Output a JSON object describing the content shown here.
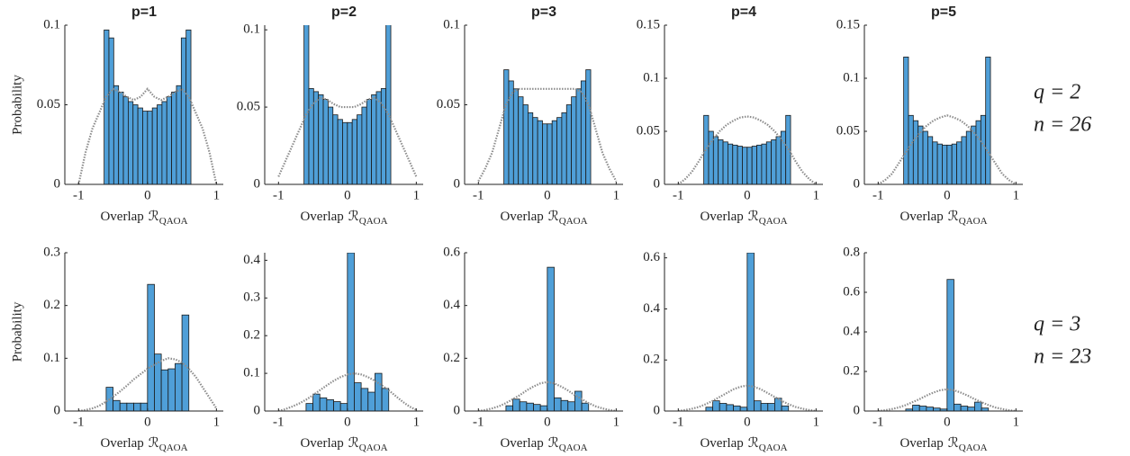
{
  "chart_data": [
    {
      "type": "histogram",
      "title": "p=1",
      "ylabel": "Probability",
      "xlabel": "Overlap",
      "xlabel_symbol": "ℛ",
      "xlabel_sub": "QAOA",
      "color": "#4f9fd8",
      "bins": [
        -0.63,
        -0.56,
        -0.49,
        -0.42,
        -0.35,
        -0.28,
        -0.21,
        -0.14,
        -0.07,
        0,
        0.07,
        0.14,
        0.21,
        0.28,
        0.35,
        0.42,
        0.49,
        0.56,
        0.63
      ],
      "values": [
        0.097,
        0.092,
        0.062,
        0.058,
        0.055,
        0.052,
        0.05,
        0.048,
        0.046,
        0.046,
        0.048,
        0.05,
        0.052,
        0.055,
        0.058,
        0.062,
        0.092,
        0.097
      ],
      "line": {
        "color": "#8c8c8c",
        "x": [
          -1,
          -0.9,
          -0.8,
          -0.7,
          -0.6,
          -0.5,
          -0.4,
          -0.3,
          -0.2,
          -0.1,
          0,
          0.1,
          0.2,
          0.3,
          0.4,
          0.5,
          0.6,
          0.7,
          0.8,
          0.9,
          1
        ],
        "values": [
          0,
          0.02,
          0.035,
          0.045,
          0.055,
          0.06,
          0.058,
          0.055,
          0.053,
          0.055,
          0.06,
          0.055,
          0.053,
          0.055,
          0.058,
          0.06,
          0.055,
          0.045,
          0.035,
          0.02,
          0
        ]
      },
      "xlim": [
        -1.2,
        1.1
      ],
      "xticks": [
        -1,
        0,
        1
      ],
      "ylim": [
        0,
        0.1
      ],
      "yticks": [
        0,
        0.05,
        0.1
      ]
    },
    {
      "type": "histogram",
      "title": "p=2",
      "xlabel": "Overlap",
      "xlabel_symbol": "ℛ",
      "xlabel_sub": "QAOA",
      "color": "#4f9fd8",
      "bins": [
        -0.63,
        -0.56,
        -0.49,
        -0.42,
        -0.35,
        -0.28,
        -0.21,
        -0.14,
        -0.07,
        0,
        0.07,
        0.14,
        0.21,
        0.28,
        0.35,
        0.42,
        0.49,
        0.56,
        0.63
      ],
      "values": [
        0.11,
        0.062,
        0.06,
        0.058,
        0.055,
        0.05,
        0.045,
        0.042,
        0.04,
        0.04,
        0.042,
        0.045,
        0.05,
        0.055,
        0.058,
        0.06,
        0.062,
        0.11
      ],
      "line": {
        "color": "#8c8c8c",
        "x": [
          -1,
          -0.9,
          -0.8,
          -0.7,
          -0.6,
          -0.5,
          -0.4,
          -0.3,
          -0.2,
          -0.1,
          0,
          0.1,
          0.2,
          0.3,
          0.4,
          0.5,
          0.6,
          0.7,
          0.8,
          0.9,
          1
        ],
        "values": [
          0.005,
          0.015,
          0.025,
          0.035,
          0.045,
          0.052,
          0.056,
          0.055,
          0.052,
          0.05,
          0.05,
          0.05,
          0.052,
          0.055,
          0.056,
          0.052,
          0.045,
          0.035,
          0.025,
          0.015,
          0.005
        ]
      },
      "xlim": [
        -1.2,
        1.1
      ],
      "xticks": [
        -1,
        0,
        1
      ],
      "ylim": [
        0,
        0.103
      ],
      "yticks": [
        0,
        0.05,
        0.1
      ]
    },
    {
      "type": "histogram",
      "title": "p=3",
      "xlabel": "Overlap",
      "xlabel_symbol": "ℛ",
      "xlabel_sub": "QAOA",
      "color": "#4f9fd8",
      "bins": [
        -0.63,
        -0.56,
        -0.49,
        -0.42,
        -0.35,
        -0.28,
        -0.21,
        -0.14,
        -0.07,
        0,
        0.07,
        0.14,
        0.21,
        0.28,
        0.35,
        0.42,
        0.49,
        0.56,
        0.63
      ],
      "values": [
        0.072,
        0.065,
        0.06,
        0.055,
        0.05,
        0.045,
        0.042,
        0.04,
        0.038,
        0.038,
        0.04,
        0.042,
        0.045,
        0.05,
        0.055,
        0.06,
        0.065,
        0.072
      ],
      "line": {
        "color": "#8c8c8c",
        "x": [
          -1,
          -0.9,
          -0.8,
          -0.7,
          -0.6,
          -0.5,
          -0.4,
          -0.3,
          -0.2,
          -0.1,
          0,
          0.1,
          0.2,
          0.3,
          0.4,
          0.5,
          0.6,
          0.7,
          0.8,
          0.9,
          1
        ],
        "values": [
          0.002,
          0.01,
          0.02,
          0.035,
          0.05,
          0.058,
          0.06,
          0.06,
          0.06,
          0.06,
          0.06,
          0.06,
          0.06,
          0.06,
          0.06,
          0.058,
          0.05,
          0.035,
          0.02,
          0.01,
          0.002
        ]
      },
      "xlim": [
        -1.2,
        1.1
      ],
      "xticks": [
        -1,
        0,
        1
      ],
      "ylim": [
        0,
        0.1
      ],
      "yticks": [
        0,
        0.05,
        0.1
      ]
    },
    {
      "type": "histogram",
      "title": "p=4",
      "xlabel": "Overlap",
      "xlabel_symbol": "ℛ",
      "xlabel_sub": "QAOA",
      "color": "#4f9fd8",
      "bins": [
        -0.63,
        -0.56,
        -0.49,
        -0.42,
        -0.35,
        -0.28,
        -0.21,
        -0.14,
        -0.07,
        0,
        0.07,
        0.14,
        0.21,
        0.28,
        0.35,
        0.42,
        0.49,
        0.56,
        0.63
      ],
      "values": [
        0.065,
        0.05,
        0.045,
        0.042,
        0.04,
        0.038,
        0.037,
        0.036,
        0.035,
        0.035,
        0.036,
        0.037,
        0.038,
        0.04,
        0.042,
        0.045,
        0.05,
        0.065
      ],
      "line": {
        "color": "#8c8c8c",
        "x": [
          -1,
          -0.9,
          -0.8,
          -0.7,
          -0.6,
          -0.5,
          -0.4,
          -0.3,
          -0.2,
          -0.1,
          0,
          0.1,
          0.2,
          0.3,
          0.4,
          0.5,
          0.6,
          0.7,
          0.8,
          0.9,
          1
        ],
        "values": [
          0,
          0.005,
          0.012,
          0.022,
          0.033,
          0.042,
          0.05,
          0.056,
          0.06,
          0.063,
          0.064,
          0.063,
          0.06,
          0.056,
          0.05,
          0.042,
          0.033,
          0.022,
          0.012,
          0.005,
          0
        ]
      },
      "xlim": [
        -1.2,
        1.1
      ],
      "xticks": [
        -1,
        0,
        1
      ],
      "ylim": [
        0,
        0.15
      ],
      "yticks": [
        0,
        0.05,
        0.1,
        0.15
      ]
    },
    {
      "type": "histogram",
      "title": "p=5",
      "xlabel": "Overlap",
      "xlabel_symbol": "ℛ",
      "xlabel_sub": "QAOA",
      "color": "#4f9fd8",
      "bins": [
        -0.63,
        -0.56,
        -0.49,
        -0.42,
        -0.35,
        -0.28,
        -0.21,
        -0.14,
        -0.07,
        0,
        0.07,
        0.14,
        0.21,
        0.28,
        0.35,
        0.42,
        0.49,
        0.56,
        0.63
      ],
      "values": [
        0.12,
        0.065,
        0.06,
        0.055,
        0.05,
        0.045,
        0.04,
        0.038,
        0.037,
        0.037,
        0.038,
        0.04,
        0.045,
        0.05,
        0.055,
        0.06,
        0.065,
        0.12
      ],
      "line": {
        "color": "#8c8c8c",
        "x": [
          -1,
          -0.9,
          -0.8,
          -0.7,
          -0.6,
          -0.5,
          -0.4,
          -0.3,
          -0.2,
          -0.1,
          0,
          0.1,
          0.2,
          0.3,
          0.4,
          0.5,
          0.6,
          0.7,
          0.8,
          0.9,
          1
        ],
        "values": [
          0,
          0.004,
          0.01,
          0.02,
          0.03,
          0.04,
          0.048,
          0.055,
          0.06,
          0.063,
          0.065,
          0.063,
          0.06,
          0.055,
          0.048,
          0.04,
          0.03,
          0.02,
          0.01,
          0.004,
          0
        ]
      },
      "xlim": [
        -1.2,
        1.1
      ],
      "xticks": [
        -1,
        0,
        1
      ],
      "ylim": [
        0,
        0.15
      ],
      "yticks": [
        0,
        0.05,
        0.1,
        0.15
      ]
    },
    {
      "type": "histogram",
      "ylabel": "Probability",
      "xlabel": "Overlap",
      "xlabel_symbol": "ℛ",
      "xlabel_sub": "QAOA",
      "color": "#4f9fd8",
      "bins": [
        -0.6,
        -0.5,
        -0.4,
        -0.3,
        -0.2,
        -0.1,
        0,
        0.1,
        0.2,
        0.3,
        0.4,
        0.5,
        0.6
      ],
      "values": [
        0.045,
        0.02,
        0.015,
        0.015,
        0.015,
        0.015,
        0.24,
        0.108,
        0.078,
        0.08,
        0.09,
        0.182
      ],
      "line": {
        "color": "#8c8c8c",
        "x": [
          -1,
          -0.9,
          -0.8,
          -0.7,
          -0.6,
          -0.5,
          -0.4,
          -0.3,
          -0.2,
          -0.1,
          0,
          0.1,
          0.2,
          0.3,
          0.4,
          0.5,
          0.6,
          0.7,
          0.8,
          0.9,
          1
        ],
        "values": [
          0,
          0.002,
          0.005,
          0.01,
          0.018,
          0.027,
          0.037,
          0.048,
          0.06,
          0.07,
          0.08,
          0.088,
          0.095,
          0.1,
          0.098,
          0.092,
          0.08,
          0.065,
          0.045,
          0.025,
          0.005
        ]
      },
      "xlim": [
        -1.2,
        1.1
      ],
      "xticks": [
        -1,
        0,
        1
      ],
      "ylim": [
        0,
        0.3
      ],
      "yticks": [
        0,
        0.1,
        0.2,
        0.3
      ]
    },
    {
      "type": "histogram",
      "xlabel": "Overlap",
      "xlabel_symbol": "ℛ",
      "xlabel_sub": "QAOA",
      "color": "#4f9fd8",
      "bins": [
        -0.6,
        -0.5,
        -0.4,
        -0.3,
        -0.2,
        -0.1,
        0,
        0.1,
        0.2,
        0.3,
        0.4,
        0.5,
        0.6
      ],
      "values": [
        0.02,
        0.045,
        0.035,
        0.03,
        0.025,
        0.02,
        0.42,
        0.075,
        0.06,
        0.05,
        0.1,
        0.06
      ],
      "line": {
        "color": "#8c8c8c",
        "x": [
          -1,
          -0.9,
          -0.8,
          -0.7,
          -0.6,
          -0.5,
          -0.4,
          -0.3,
          -0.2,
          -0.1,
          0,
          0.1,
          0.2,
          0.3,
          0.4,
          0.5,
          0.6,
          0.7,
          0.8,
          0.9,
          1
        ],
        "values": [
          0,
          0.005,
          0.012,
          0.02,
          0.03,
          0.042,
          0.055,
          0.068,
          0.08,
          0.09,
          0.097,
          0.1,
          0.097,
          0.09,
          0.08,
          0.068,
          0.055,
          0.04,
          0.025,
          0.012,
          0.003
        ]
      },
      "xlim": [
        -1.2,
        1.1
      ],
      "xticks": [
        -1,
        0,
        1
      ],
      "ylim": [
        0,
        0.42
      ],
      "yticks": [
        0,
        0.1,
        0.2,
        0.3,
        0.4
      ]
    },
    {
      "type": "histogram",
      "xlabel": "Overlap",
      "xlabel_symbol": "ℛ",
      "xlabel_sub": "QAOA",
      "color": "#4f9fd8",
      "bins": [
        -0.6,
        -0.5,
        -0.4,
        -0.3,
        -0.2,
        -0.1,
        0,
        0.1,
        0.2,
        0.3,
        0.4,
        0.5,
        0.6
      ],
      "values": [
        0.02,
        0.045,
        0.035,
        0.03,
        0.025,
        0.02,
        0.545,
        0.05,
        0.04,
        0.035,
        0.075,
        0.03
      ],
      "line": {
        "color": "#8c8c8c",
        "x": [
          -1,
          -0.9,
          -0.8,
          -0.7,
          -0.6,
          -0.5,
          -0.4,
          -0.3,
          -0.2,
          -0.1,
          0,
          0.1,
          0.2,
          0.3,
          0.4,
          0.5,
          0.6,
          0.7,
          0.8,
          0.9,
          1
        ],
        "values": [
          0,
          0.004,
          0.01,
          0.018,
          0.03,
          0.045,
          0.06,
          0.078,
          0.093,
          0.105,
          0.11,
          0.105,
          0.093,
          0.078,
          0.06,
          0.045,
          0.03,
          0.018,
          0.01,
          0.004,
          0
        ]
      },
      "xlim": [
        -1.2,
        1.1
      ],
      "xticks": [
        -1,
        0,
        1
      ],
      "ylim": [
        0,
        0.6
      ],
      "yticks": [
        0,
        0.2,
        0.4,
        0.6
      ]
    },
    {
      "type": "histogram",
      "xlabel": "Overlap",
      "xlabel_symbol": "ℛ",
      "xlabel_sub": "QAOA",
      "color": "#4f9fd8",
      "bins": [
        -0.6,
        -0.5,
        -0.4,
        -0.3,
        -0.2,
        -0.1,
        0,
        0.1,
        0.2,
        0.3,
        0.4,
        0.5,
        0.6
      ],
      "values": [
        0.015,
        0.04,
        0.03,
        0.025,
        0.02,
        0.015,
        0.62,
        0.04,
        0.03,
        0.03,
        0.05,
        0.02
      ],
      "line": {
        "color": "#8c8c8c",
        "x": [
          -1,
          -0.9,
          -0.8,
          -0.7,
          -0.6,
          -0.5,
          -0.4,
          -0.3,
          -0.2,
          -0.1,
          0,
          0.1,
          0.2,
          0.3,
          0.4,
          0.5,
          0.6,
          0.7,
          0.8,
          0.9,
          1
        ],
        "values": [
          0,
          0.004,
          0.009,
          0.016,
          0.027,
          0.04,
          0.055,
          0.07,
          0.085,
          0.095,
          0.1,
          0.095,
          0.085,
          0.07,
          0.055,
          0.04,
          0.027,
          0.016,
          0.009,
          0.004,
          0
        ]
      },
      "xlim": [
        -1.2,
        1.1
      ],
      "xticks": [
        -1,
        0,
        1
      ],
      "ylim": [
        0,
        0.62
      ],
      "yticks": [
        0,
        0.2,
        0.4,
        0.6
      ]
    },
    {
      "type": "histogram",
      "xlabel": "Overlap",
      "xlabel_symbol": "ℛ",
      "xlabel_sub": "QAOA",
      "color": "#4f9fd8",
      "bins": [
        -0.6,
        -0.5,
        -0.4,
        -0.3,
        -0.2,
        -0.1,
        0,
        0.1,
        0.2,
        0.3,
        0.4,
        0.5,
        0.6
      ],
      "values": [
        0.01,
        0.03,
        0.025,
        0.02,
        0.015,
        0.01,
        0.665,
        0.035,
        0.025,
        0.02,
        0.045,
        0.015
      ],
      "line": {
        "color": "#8c8c8c",
        "x": [
          -1,
          -0.9,
          -0.8,
          -0.7,
          -0.6,
          -0.5,
          -0.4,
          -0.3,
          -0.2,
          -0.1,
          0,
          0.1,
          0.2,
          0.3,
          0.4,
          0.5,
          0.6,
          0.7,
          0.8,
          0.9,
          1
        ],
        "values": [
          0,
          0.004,
          0.01,
          0.018,
          0.03,
          0.045,
          0.06,
          0.078,
          0.093,
          0.105,
          0.11,
          0.105,
          0.093,
          0.078,
          0.06,
          0.045,
          0.03,
          0.018,
          0.01,
          0.004,
          0
        ]
      },
      "xlim": [
        -1.2,
        1.1
      ],
      "xticks": [
        -1,
        0,
        1
      ],
      "ylim": [
        0,
        0.8
      ],
      "yticks": [
        0,
        0.2,
        0.4,
        0.6,
        0.8
      ]
    }
  ],
  "row_labels": [
    [
      "q = 2",
      "n = 26"
    ],
    [
      "q = 3",
      "n = 23"
    ]
  ]
}
